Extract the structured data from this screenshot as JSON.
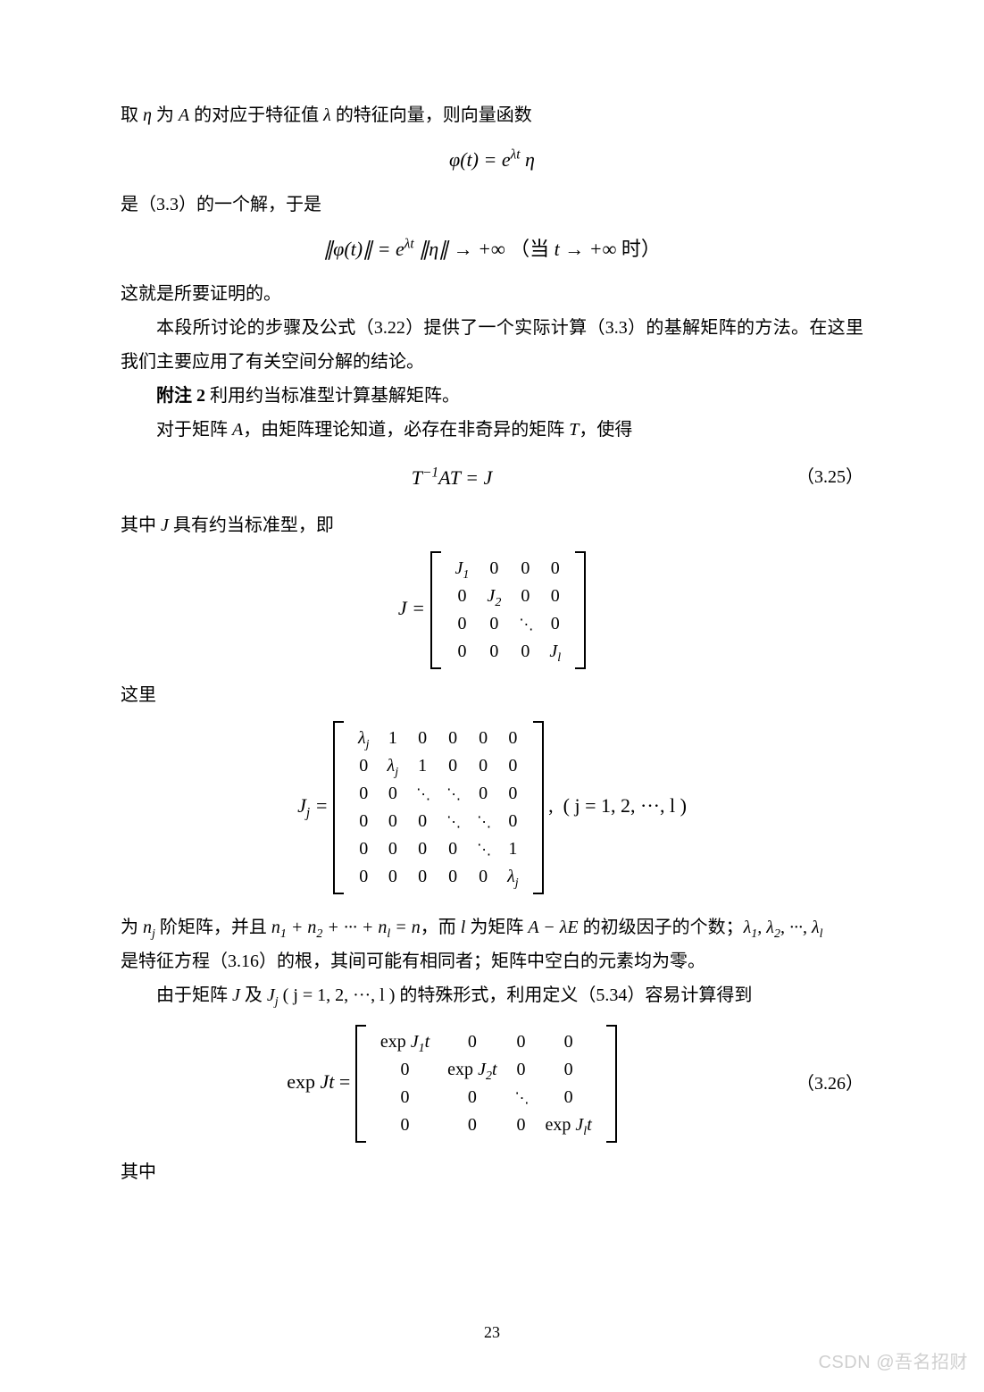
{
  "text": {
    "p1_pre": "取 ",
    "p1_eta": "η",
    "p1_mid1": " 为 ",
    "p1_A": "A",
    "p1_mid2": " 的对应于特征值 ",
    "p1_lambda": "λ",
    "p1_post": " 的特征向量，则向量函数",
    "p2": "是（3.3）的一个解，于是",
    "p3": "这就是所要证明的。",
    "p4": "本段所讨论的步骤及公式（3.22）提供了一个实际计算（3.3）的基解矩阵的方法。在这里我们主要应用了有关空间分解的结论。",
    "p5a": "附注 2",
    "p5b": "  利用约当标准型计算基解矩阵。",
    "p6_pre": "对于矩阵 ",
    "p6_A": "A",
    "p6_mid": "，由矩阵理论知道，必存在非奇异的矩阵 ",
    "p6_T": "T",
    "p6_post": "，使得",
    "p7_pre": "其中 ",
    "p7_J": "J",
    "p7_post": " 具有约当标准型，即",
    "p8": "这里",
    "p9_pre": "为 ",
    "p9_nj": "n",
    "p9_nj_sub": "j",
    "p9_mid1": " 阶矩阵，并且 ",
    "p9_sum": "n₁ + n₂ + ··· + nₗ = n",
    "p9_mid2": "，而 ",
    "p9_l": "l",
    "p9_mid3": " 为矩阵 ",
    "p9_AlE": "A − λE",
    "p9_mid4": " 的初级因子的个数；",
    "p9_lams": "λ₁, λ₂, ···, λₗ",
    "p9_line2": "是特征方程（3.16）的根，其间可能有相同者；矩阵中空白的元素均为零。",
    "p10_pre": "由于矩阵 ",
    "p10_J": "J",
    "p10_mid1": " 及 ",
    "p10_Jj": "J",
    "p10_Jj_sub": "j",
    "p10_paren": " ( j = 1, 2, ···, l )",
    "p10_mid2": " 的特殊形式，利用定义（5.34）容易计算得到",
    "p11": "其中"
  },
  "formulas": {
    "f1": "φ(t) = e^{λt} η",
    "f2": "∥φ(t)∥ = e^{λt} ∥η∥ → +∞ （当 t → +∞ 时）",
    "f3": "T⁻¹AT = J",
    "f4_lhs": "J =",
    "f5_lhs": "Jⱼ =",
    "f5_cond": "( j = 1, 2, ···, l )",
    "f6_lhs": "exp Jt ="
  },
  "eqnums": {
    "e3_25": "（3.25）",
    "e3_26": "（3.26）"
  },
  "matrices": {
    "J": [
      [
        "J₁",
        "0",
        "0",
        "0"
      ],
      [
        "0",
        "J₂",
        "0",
        "0"
      ],
      [
        "0",
        "0",
        "⋱",
        "0"
      ],
      [
        "0",
        "0",
        "0",
        "Jₗ"
      ]
    ],
    "Jj": [
      [
        "λⱼ",
        "1",
        "0",
        "0",
        "0",
        "0"
      ],
      [
        "0",
        "λⱼ",
        "1",
        "0",
        "0",
        "0"
      ],
      [
        "0",
        "0",
        "⋱",
        "⋱",
        "0",
        "0"
      ],
      [
        "0",
        "0",
        "0",
        "⋱",
        "⋱",
        "0"
      ],
      [
        "0",
        "0",
        "0",
        "0",
        "⋱",
        "1"
      ],
      [
        "0",
        "0",
        "0",
        "0",
        "0",
        "λⱼ"
      ]
    ],
    "expJt": [
      [
        "exp J₁t",
        "0",
        "0",
        "0"
      ],
      [
        "0",
        "exp J₂t",
        "0",
        "0"
      ],
      [
        "0",
        "0",
        "⋱",
        "0"
      ],
      [
        "0",
        "0",
        "0",
        "exp Jₗt"
      ]
    ]
  },
  "pagenum": "23",
  "watermark": "CSDN @吾名招财",
  "colors": {
    "text": "#000000",
    "bg": "#ffffff",
    "watermark": "#cfcfcf"
  },
  "fonts": {
    "body": "SimSun",
    "math": "Times New Roman",
    "body_size_pt": 15,
    "math_size_pt": 16
  }
}
